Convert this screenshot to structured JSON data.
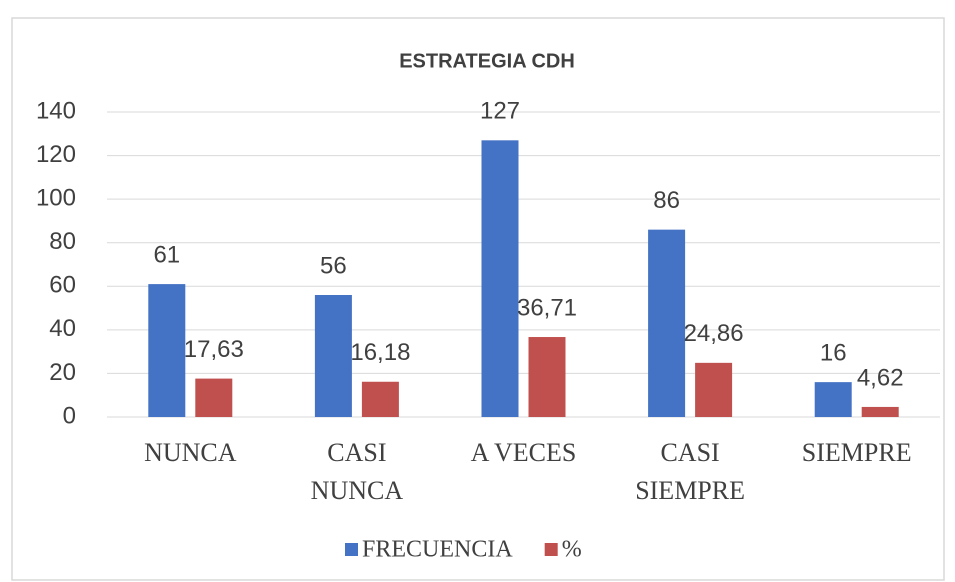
{
  "chart_data": {
    "type": "bar",
    "title": "ESTRATEGIA CDH",
    "categories": [
      "NUNCA",
      "CASI NUNCA",
      "A VECES",
      "CASI SIEMPRE",
      "SIEMPRE"
    ],
    "series": [
      {
        "name": "FRECUENCIA",
        "color": "#4472c4",
        "values": [
          61,
          56,
          127,
          86,
          16
        ]
      },
      {
        "name": "%",
        "color": "#c0504d",
        "values": [
          17.63,
          16.18,
          36.71,
          24.86,
          4.62
        ],
        "value_labels": [
          "17,63",
          "16,18",
          "36,71",
          "24,86",
          "4,62"
        ]
      }
    ],
    "ylim": [
      0,
      140
    ],
    "yticks": [
      0,
      20,
      40,
      60,
      80,
      100,
      120,
      140
    ],
    "grid": true,
    "legend": "bottom"
  }
}
